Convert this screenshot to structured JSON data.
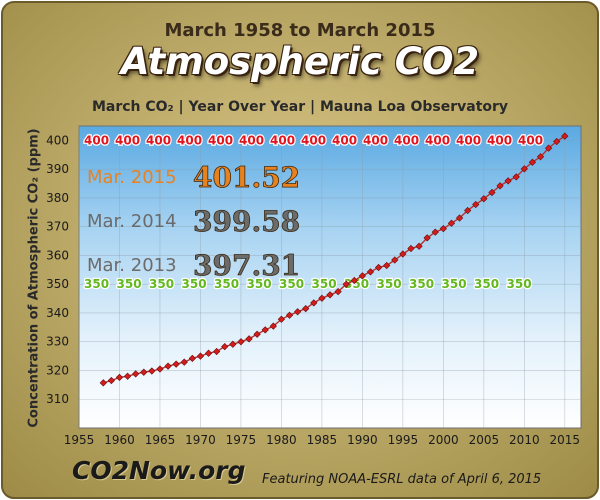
{
  "header": {
    "date_range": "March 1958 to March 2015",
    "title": "Atmospheric CO2",
    "subtitle": "March CO₂  |  Year Over Year  |  Mauna Loa Observatory"
  },
  "footer": {
    "brand": "CO2Now.org",
    "source": "Featuring NOAA-ESRL data of April 6, 2015"
  },
  "colors": {
    "line": "#b7322e",
    "marker": "#d41c1c",
    "label_400": "#e1141e",
    "label_350": "#62b81e",
    "highlight_2015": "#e8821e",
    "label_grey": "#6b6b6b",
    "frame": "#c9b56e",
    "plot_bg": "#cfe6f6"
  },
  "callouts": [
    {
      "label": "Mar. 2015",
      "value": "401.52",
      "tone": "orange"
    },
    {
      "label": "Mar. 2014",
      "value": "399.58",
      "tone": "grey"
    },
    {
      "label": "Mar. 2013",
      "value": "397.31",
      "tone": "grey"
    }
  ],
  "chart_data": {
    "type": "line",
    "title": "Atmospheric CO2",
    "ylabel": "Concentration of Atmospheric CO₂ (ppm)",
    "xlabel": "",
    "xlim": [
      1955,
      2017
    ],
    "ylim": [
      300,
      405
    ],
    "xticks": [
      1955,
      1960,
      1965,
      1970,
      1975,
      1980,
      1985,
      1990,
      1995,
      2000,
      2005,
      2010,
      2015
    ],
    "yticks": [
      310,
      320,
      330,
      340,
      350,
      360,
      370,
      380,
      390,
      400
    ],
    "grid": true,
    "reference_lines": [
      {
        "name": "400",
        "value": 400,
        "label": "400",
        "repeat_count": 15
      },
      {
        "name": "350",
        "value": 350,
        "label": "350",
        "repeat_count": 14
      }
    ],
    "series": [
      {
        "x": [
          1958,
          1959,
          1960,
          1961,
          1962,
          1963,
          1964,
          1965,
          1966,
          1967,
          1968,
          1969,
          1970,
          1971,
          1972,
          1973,
          1974,
          1975,
          1976,
          1977,
          1978,
          1979,
          1980,
          1981,
          1982,
          1983,
          1984,
          1985,
          1986,
          1987,
          1988,
          1989,
          1990,
          1991,
          1992,
          1993,
          1994,
          1995,
          1996,
          1997,
          1998,
          1999,
          2000,
          2001,
          2002,
          2003,
          2004,
          2005,
          2006,
          2007,
          2008,
          2009,
          2010,
          2011,
          2012,
          2013,
          2014,
          2015
        ],
        "y": [
          315.7,
          316.5,
          317.6,
          318.0,
          318.8,
          319.4,
          319.8,
          320.5,
          321.5,
          322.2,
          322.9,
          324.2,
          325.0,
          326.0,
          326.6,
          328.3,
          329.1,
          330.0,
          331.0,
          332.6,
          334.1,
          335.4,
          337.8,
          339.2,
          340.4,
          341.5,
          343.5,
          345.1,
          346.3,
          347.4,
          350.0,
          351.3,
          352.9,
          354.3,
          355.8,
          356.5,
          358.4,
          360.5,
          362.4,
          363.2,
          366.1,
          368.1,
          369.3,
          371.2,
          373.0,
          375.6,
          377.7,
          379.7,
          381.9,
          384.2,
          385.9,
          387.3,
          390.1,
          392.4,
          394.3,
          397.3,
          399.6,
          401.5
        ]
      }
    ]
  }
}
